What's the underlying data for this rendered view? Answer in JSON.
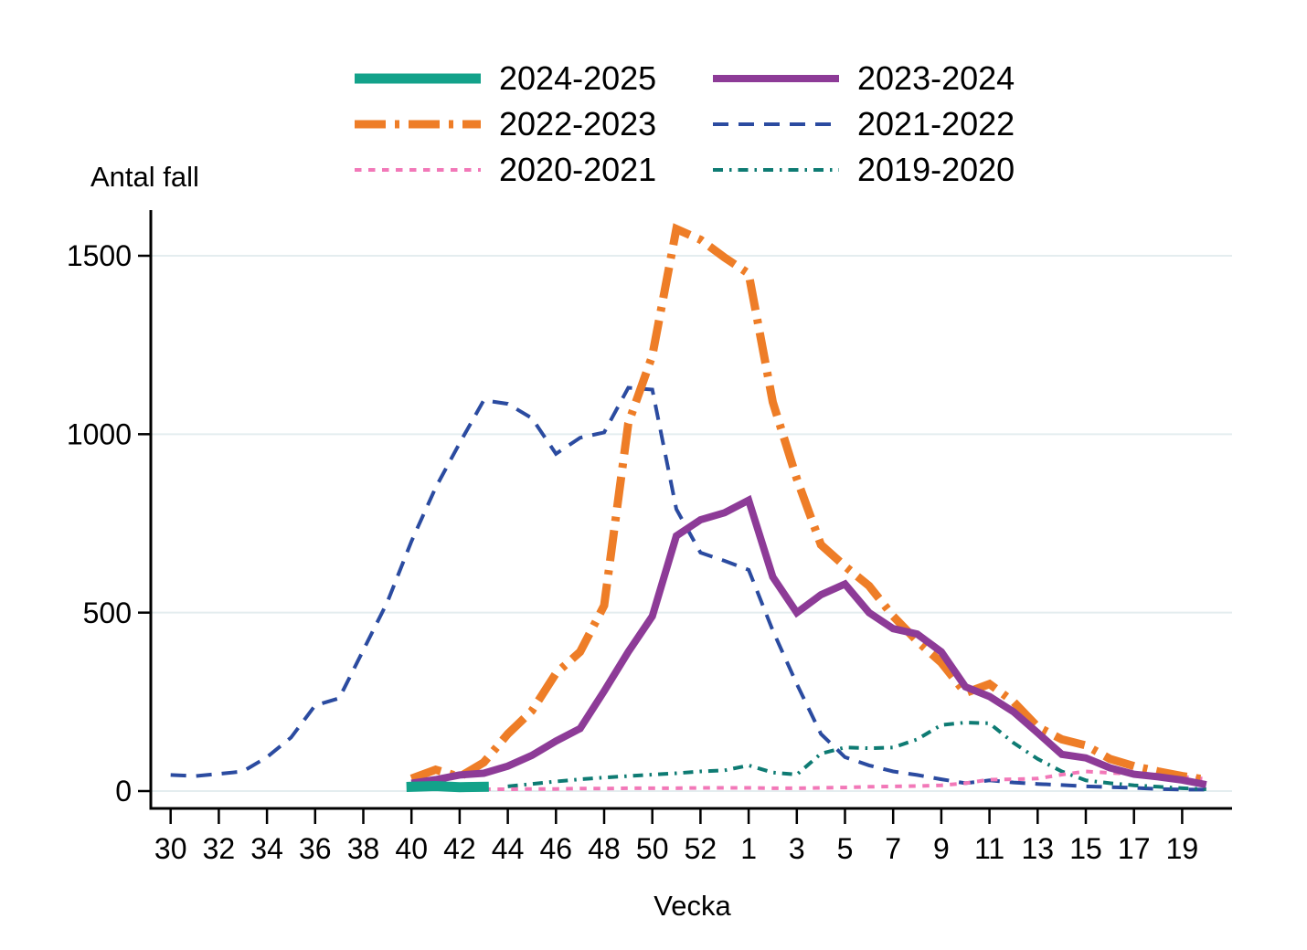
{
  "chart_data": {
    "type": "line",
    "ylabel": "Antal fall",
    "xlabel": "Vecka",
    "ylim": [
      0,
      1600
    ],
    "yticks": [
      0,
      500,
      1000,
      1500
    ],
    "grid": "horizontal",
    "grid_color": "#e4edef",
    "axis_color": "#000000",
    "legend_position": "top-center, two columns, three rows",
    "categories": [
      "30",
      "31",
      "32",
      "33",
      "34",
      "35",
      "36",
      "37",
      "38",
      "39",
      "40",
      "41",
      "42",
      "43",
      "44",
      "45",
      "46",
      "47",
      "48",
      "49",
      "50",
      "51",
      "52",
      "53",
      "1",
      "2",
      "3",
      "4",
      "5",
      "6",
      "7",
      "8",
      "9",
      "10",
      "11",
      "12",
      "13",
      "14",
      "15",
      "16",
      "17",
      "18",
      "19",
      "20"
    ],
    "xtick_labels": [
      "30",
      "32",
      "34",
      "36",
      "38",
      "40",
      "42",
      "44",
      "46",
      "48",
      "50",
      "52",
      "1",
      "3",
      "5",
      "7",
      "9",
      "11",
      "13",
      "15",
      "17",
      "19"
    ],
    "series": [
      {
        "name": "2021-2022",
        "color": "#2b4ba0",
        "style": "dashed",
        "width": 4,
        "values": [
          45,
          42,
          48,
          55,
          95,
          150,
          240,
          260,
          395,
          530,
          700,
          850,
          975,
          1095,
          1085,
          1045,
          945,
          990,
          1005,
          1130,
          1125,
          790,
          668,
          645,
          620,
          450,
          300,
          160,
          95,
          72,
          55,
          45,
          33,
          22,
          30,
          24,
          20,
          17,
          13,
          11,
          9,
          6,
          4,
          4
        ]
      },
      {
        "name": "2019-2020",
        "color": "#0e7b73",
        "style": "dashdot-thin",
        "width": 4,
        "values": [
          null,
          null,
          null,
          null,
          null,
          null,
          null,
          null,
          null,
          null,
          null,
          null,
          null,
          null,
          13,
          20,
          27,
          33,
          38,
          42,
          46,
          50,
          55,
          58,
          72,
          52,
          46,
          105,
          122,
          120,
          122,
          145,
          185,
          192,
          190,
          135,
          90,
          55,
          30,
          22,
          16,
          12,
          8,
          5
        ]
      },
      {
        "name": "2020-2021",
        "color": "#f278b8",
        "style": "dotted",
        "width": 4,
        "values": [
          null,
          null,
          null,
          null,
          null,
          null,
          null,
          null,
          null,
          null,
          null,
          null,
          null,
          5,
          5,
          6,
          6,
          7,
          7,
          8,
          8,
          8,
          9,
          9,
          9,
          8,
          8,
          9,
          10,
          12,
          13,
          14,
          16,
          22,
          32,
          33,
          35,
          46,
          55,
          51,
          48,
          46,
          40,
          34
        ]
      },
      {
        "name": "2022-2023",
        "color": "#ee7d27",
        "style": "dashdot-thick",
        "width": 9,
        "values": [
          null,
          null,
          null,
          null,
          null,
          null,
          null,
          null,
          null,
          null,
          35,
          60,
          40,
          80,
          160,
          225,
          330,
          390,
          520,
          1030,
          1220,
          1575,
          1545,
          1495,
          1450,
          1090,
          875,
          690,
          630,
          575,
          490,
          420,
          360,
          275,
          300,
          250,
          180,
          145,
          128,
          90,
          70,
          55,
          42,
          32
        ]
      },
      {
        "name": "2023-2024",
        "color": "#8d3b97",
        "style": "solid",
        "width": 8,
        "values": [
          null,
          null,
          null,
          null,
          null,
          null,
          null,
          null,
          null,
          null,
          22,
          32,
          45,
          50,
          70,
          100,
          140,
          175,
          280,
          390,
          490,
          715,
          760,
          780,
          815,
          600,
          500,
          550,
          580,
          500,
          455,
          440,
          390,
          292,
          265,
          222,
          163,
          103,
          93,
          65,
          47,
          40,
          31,
          18
        ]
      },
      {
        "name": "2024-2025",
        "color": "#13a28a",
        "style": "solid",
        "width": 11,
        "values": [
          null,
          null,
          null,
          null,
          null,
          null,
          null,
          null,
          null,
          null,
          12,
          14,
          11,
          12,
          null,
          null,
          null,
          null,
          null,
          null,
          null,
          null,
          null,
          null,
          null,
          null,
          null,
          null,
          null,
          null,
          null,
          null,
          null,
          null,
          null,
          null,
          null,
          null,
          null,
          null,
          null,
          null,
          null,
          null
        ]
      }
    ],
    "legend_rows": [
      [
        "2024-2025",
        "2023-2024"
      ],
      [
        "2022-2023",
        "2021-2022"
      ],
      [
        "2020-2021",
        "2019-2020"
      ]
    ]
  }
}
